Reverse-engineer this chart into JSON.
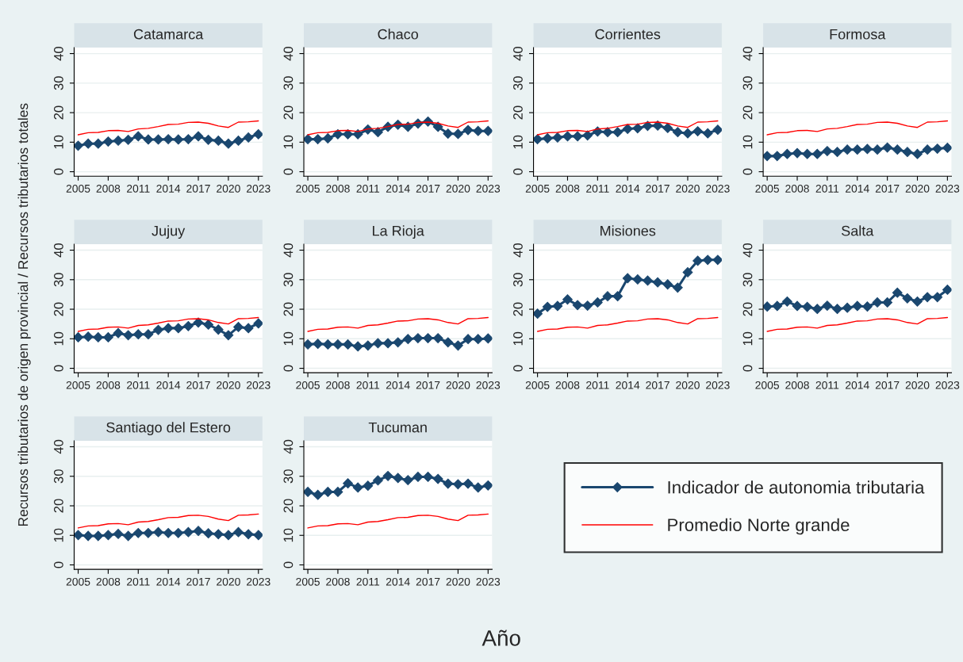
{
  "chart_data": [
    {
      "type": "line",
      "title": "Catamarca",
      "grid": "y",
      "xlim": [
        2004.6,
        2023.4
      ],
      "ylim": [
        -1.5,
        42
      ],
      "xticks": [
        2005,
        2008,
        2011,
        2014,
        2017,
        2020,
        2023
      ],
      "yticks": [
        0,
        10,
        20,
        30,
        40
      ],
      "x": [
        2005,
        2006,
        2007,
        2008,
        2009,
        2010,
        2011,
        2012,
        2013,
        2014,
        2015,
        2016,
        2017,
        2018,
        2019,
        2020,
        2021,
        2022,
        2023
      ],
      "series": [
        {
          "color": "#1a476f",
          "marker": "diamond",
          "values": [
            8.8,
            9.5,
            9.5,
            10.2,
            10.5,
            10.8,
            12.0,
            10.9,
            10.9,
            11.0,
            10.9,
            11.0,
            12.0,
            10.8,
            10.5,
            9.5,
            10.5,
            11.6,
            12.7
          ]
        },
        {
          "color": "#ff0000",
          "marker": "none",
          "values": [
            12.5,
            13.2,
            13.3,
            13.9,
            14.0,
            13.6,
            14.5,
            14.7,
            15.3,
            16.0,
            16.1,
            16.7,
            16.8,
            16.4,
            15.5,
            15.0,
            16.8,
            16.9,
            17.2
          ]
        }
      ]
    },
    {
      "type": "line",
      "title": "Chaco",
      "grid": "y",
      "xlim": [
        2004.6,
        2023.4
      ],
      "ylim": [
        -1.5,
        42
      ],
      "xticks": [
        2005,
        2008,
        2011,
        2014,
        2017,
        2020,
        2023
      ],
      "yticks": [
        0,
        10,
        20,
        30,
        40
      ],
      "x": [
        2005,
        2006,
        2007,
        2008,
        2009,
        2010,
        2011,
        2012,
        2013,
        2014,
        2015,
        2016,
        2017,
        2018,
        2019,
        2020,
        2021,
        2022,
        2023
      ],
      "series": [
        {
          "color": "#1a476f",
          "marker": "diamond",
          "values": [
            11.0,
            11.0,
            11.3,
            12.7,
            12.7,
            12.7,
            14.3,
            13.4,
            15.2,
            15.9,
            15.2,
            16.3,
            17.0,
            15.2,
            12.9,
            12.8,
            14.1,
            13.8,
            13.8
          ]
        },
        {
          "color": "#ff0000",
          "marker": "none",
          "values": [
            12.5,
            13.2,
            13.3,
            13.9,
            14.0,
            13.6,
            14.5,
            14.7,
            15.3,
            16.0,
            16.1,
            16.7,
            16.8,
            16.4,
            15.5,
            15.0,
            16.8,
            16.9,
            17.2
          ]
        }
      ]
    },
    {
      "type": "line",
      "title": "Corrientes",
      "grid": "y",
      "xlim": [
        2004.6,
        2023.4
      ],
      "ylim": [
        -1.5,
        42
      ],
      "xticks": [
        2005,
        2008,
        2011,
        2014,
        2017,
        2020,
        2023
      ],
      "yticks": [
        0,
        10,
        20,
        30,
        40
      ],
      "x": [
        2005,
        2006,
        2007,
        2008,
        2009,
        2010,
        2011,
        2012,
        2013,
        2014,
        2015,
        2016,
        2017,
        2018,
        2019,
        2020,
        2021,
        2022,
        2023
      ],
      "series": [
        {
          "color": "#1a476f",
          "marker": "diamond",
          "values": [
            11.0,
            11.3,
            11.6,
            12.0,
            12.0,
            12.3,
            13.6,
            13.4,
            13.4,
            14.5,
            14.7,
            15.5,
            15.6,
            14.8,
            13.4,
            13.0,
            13.7,
            13.0,
            14.2
          ]
        },
        {
          "color": "#ff0000",
          "marker": "none",
          "values": [
            12.5,
            13.2,
            13.3,
            13.9,
            14.0,
            13.6,
            14.5,
            14.7,
            15.3,
            16.0,
            16.1,
            16.7,
            16.8,
            16.4,
            15.5,
            15.0,
            16.8,
            16.9,
            17.2
          ]
        }
      ]
    },
    {
      "type": "line",
      "title": "Formosa",
      "grid": "y",
      "xlim": [
        2004.6,
        2023.4
      ],
      "ylim": [
        -1.5,
        42
      ],
      "xticks": [
        2005,
        2008,
        2011,
        2014,
        2017,
        2020,
        2023
      ],
      "yticks": [
        0,
        10,
        20,
        30,
        40
      ],
      "x": [
        2005,
        2006,
        2007,
        2008,
        2009,
        2010,
        2011,
        2012,
        2013,
        2014,
        2015,
        2016,
        2017,
        2018,
        2019,
        2020,
        2021,
        2022,
        2023
      ],
      "series": [
        {
          "color": "#1a476f",
          "marker": "diamond",
          "values": [
            5.3,
            5.3,
            6.0,
            6.3,
            6.0,
            6.0,
            7.0,
            6.7,
            7.5,
            7.5,
            7.7,
            7.5,
            8.2,
            7.5,
            6.7,
            6.0,
            7.5,
            7.8,
            8.1
          ]
        },
        {
          "color": "#ff0000",
          "marker": "none",
          "values": [
            12.5,
            13.2,
            13.3,
            13.9,
            14.0,
            13.6,
            14.5,
            14.7,
            15.3,
            16.0,
            16.1,
            16.7,
            16.8,
            16.4,
            15.5,
            15.0,
            16.8,
            16.9,
            17.2
          ]
        }
      ]
    },
    {
      "type": "line",
      "title": "Jujuy",
      "ylabel": "Recursos tributarios de origen provincial / Recursos tributarios totales",
      "grid": "y",
      "xlim": [
        2004.6,
        2023.4
      ],
      "ylim": [
        -1.5,
        42
      ],
      "xticks": [
        2005,
        2008,
        2011,
        2014,
        2017,
        2020,
        2023
      ],
      "yticks": [
        0,
        10,
        20,
        30,
        40
      ],
      "x": [
        2005,
        2006,
        2007,
        2008,
        2009,
        2010,
        2011,
        2012,
        2013,
        2014,
        2015,
        2016,
        2017,
        2018,
        2019,
        2020,
        2021,
        2022,
        2023
      ],
      "series": [
        {
          "color": "#1a476f",
          "marker": "diamond",
          "values": [
            10.5,
            10.7,
            10.5,
            10.5,
            11.9,
            11.2,
            11.5,
            11.5,
            13.0,
            13.6,
            13.6,
            14.3,
            15.5,
            14.8,
            13.1,
            11.2,
            14.0,
            13.6,
            15.2
          ]
        },
        {
          "color": "#ff0000",
          "marker": "none",
          "values": [
            12.5,
            13.2,
            13.3,
            13.9,
            14.0,
            13.6,
            14.5,
            14.7,
            15.3,
            16.0,
            16.1,
            16.7,
            16.8,
            16.4,
            15.5,
            15.0,
            16.8,
            16.9,
            17.2
          ]
        }
      ]
    },
    {
      "type": "line",
      "title": "La Rioja",
      "grid": "y",
      "xlim": [
        2004.6,
        2023.4
      ],
      "ylim": [
        -1.5,
        42
      ],
      "xticks": [
        2005,
        2008,
        2011,
        2014,
        2017,
        2020,
        2023
      ],
      "yticks": [
        0,
        10,
        20,
        30,
        40
      ],
      "x": [
        2005,
        2006,
        2007,
        2008,
        2009,
        2010,
        2011,
        2012,
        2013,
        2014,
        2015,
        2016,
        2017,
        2018,
        2019,
        2020,
        2021,
        2022,
        2023
      ],
      "series": [
        {
          "color": "#1a476f",
          "marker": "diamond",
          "values": [
            8.1,
            8.3,
            8.1,
            8.1,
            8.1,
            7.4,
            7.7,
            8.5,
            8.5,
            8.8,
            9.9,
            10.2,
            10.2,
            10.2,
            8.8,
            7.7,
            9.9,
            9.9,
            10.1
          ]
        },
        {
          "color": "#ff0000",
          "marker": "none",
          "values": [
            12.5,
            13.2,
            13.3,
            13.9,
            14.0,
            13.6,
            14.5,
            14.7,
            15.3,
            16.0,
            16.1,
            16.7,
            16.8,
            16.4,
            15.5,
            15.0,
            16.8,
            16.9,
            17.2
          ]
        }
      ]
    },
    {
      "type": "line",
      "title": "Misiones",
      "grid": "y",
      "xlim": [
        2004.6,
        2023.4
      ],
      "ylim": [
        -1.5,
        42
      ],
      "xticks": [
        2005,
        2008,
        2011,
        2014,
        2017,
        2020,
        2023
      ],
      "yticks": [
        0,
        10,
        20,
        30,
        40
      ],
      "x": [
        2005,
        2006,
        2007,
        2008,
        2009,
        2010,
        2011,
        2012,
        2013,
        2014,
        2015,
        2016,
        2017,
        2018,
        2019,
        2020,
        2021,
        2022,
        2023
      ],
      "series": [
        {
          "color": "#1a476f",
          "marker": "diamond",
          "values": [
            18.5,
            20.8,
            21.1,
            23.3,
            21.4,
            21.2,
            22.3,
            24.4,
            24.4,
            30.5,
            30.1,
            29.7,
            29.1,
            28.4,
            27.3,
            32.5,
            36.4,
            36.7,
            36.7
          ]
        },
        {
          "color": "#ff0000",
          "marker": "none",
          "values": [
            12.5,
            13.2,
            13.3,
            13.9,
            14.0,
            13.6,
            14.5,
            14.7,
            15.3,
            16.0,
            16.1,
            16.7,
            16.8,
            16.4,
            15.5,
            15.0,
            16.8,
            16.9,
            17.2
          ]
        }
      ]
    },
    {
      "type": "line",
      "title": "Salta",
      "grid": "y",
      "xlim": [
        2004.6,
        2023.4
      ],
      "ylim": [
        -1.5,
        42
      ],
      "xticks": [
        2005,
        2008,
        2011,
        2014,
        2017,
        2020,
        2023
      ],
      "yticks": [
        0,
        10,
        20,
        30,
        40
      ],
      "x": [
        2005,
        2006,
        2007,
        2008,
        2009,
        2010,
        2011,
        2012,
        2013,
        2014,
        2015,
        2016,
        2017,
        2018,
        2019,
        2020,
        2021,
        2022,
        2023
      ],
      "series": [
        {
          "color": "#1a476f",
          "marker": "diamond",
          "values": [
            20.9,
            21.1,
            22.6,
            21.1,
            20.8,
            20.1,
            21.2,
            20.1,
            20.5,
            21.1,
            20.9,
            22.3,
            22.3,
            25.6,
            23.7,
            22.6,
            24.1,
            24.1,
            26.6
          ]
        },
        {
          "color": "#ff0000",
          "marker": "none",
          "values": [
            12.5,
            13.2,
            13.3,
            13.9,
            14.0,
            13.6,
            14.5,
            14.7,
            15.3,
            16.0,
            16.1,
            16.7,
            16.8,
            16.4,
            15.5,
            15.0,
            16.8,
            16.9,
            17.2
          ]
        }
      ]
    },
    {
      "type": "line",
      "title": "Santiago del Estero",
      "grid": "y",
      "xlim": [
        2004.6,
        2023.4
      ],
      "ylim": [
        -1.5,
        42
      ],
      "xticks": [
        2005,
        2008,
        2011,
        2014,
        2017,
        2020,
        2023
      ],
      "yticks": [
        0,
        10,
        20,
        30,
        40
      ],
      "x": [
        2005,
        2006,
        2007,
        2008,
        2009,
        2010,
        2011,
        2012,
        2013,
        2014,
        2015,
        2016,
        2017,
        2018,
        2019,
        2020,
        2021,
        2022,
        2023
      ],
      "series": [
        {
          "color": "#1a476f",
          "marker": "diamond",
          "values": [
            10.1,
            9.8,
            9.8,
            10.1,
            10.5,
            9.8,
            10.8,
            10.8,
            11.1,
            10.8,
            10.8,
            11.1,
            11.5,
            10.7,
            10.4,
            10.1,
            11.1,
            10.4,
            10.1
          ]
        },
        {
          "color": "#ff0000",
          "marker": "none",
          "values": [
            12.5,
            13.2,
            13.3,
            13.9,
            14.0,
            13.6,
            14.5,
            14.7,
            15.3,
            16.0,
            16.1,
            16.7,
            16.8,
            16.4,
            15.5,
            15.0,
            16.8,
            16.9,
            17.2
          ]
        }
      ]
    },
    {
      "type": "line",
      "title": "Tucuman",
      "xlabel": "Año",
      "legend": "right",
      "grid": "y",
      "xlim": [
        2004.6,
        2023.4
      ],
      "ylim": [
        -1.5,
        42
      ],
      "xticks": [
        2005,
        2008,
        2011,
        2014,
        2017,
        2020,
        2023
      ],
      "yticks": [
        0,
        10,
        20,
        30,
        40
      ],
      "x": [
        2005,
        2006,
        2007,
        2008,
        2009,
        2010,
        2011,
        2012,
        2013,
        2014,
        2015,
        2016,
        2017,
        2018,
        2019,
        2020,
        2021,
        2022,
        2023
      ],
      "series": [
        {
          "name": "Indicador de autonomia tributaria",
          "color": "#1a476f",
          "marker": "diamond",
          "values": [
            24.7,
            23.7,
            24.7,
            24.7,
            27.6,
            26.2,
            26.8,
            28.6,
            30.1,
            29.4,
            28.7,
            29.8,
            29.8,
            29.1,
            27.5,
            27.3,
            27.5,
            26.2,
            26.9
          ]
        },
        {
          "name": "Promedio Norte grande",
          "color": "#ff0000",
          "marker": "none",
          "values": [
            12.5,
            13.2,
            13.3,
            13.9,
            14.0,
            13.6,
            14.5,
            14.7,
            15.3,
            16.0,
            16.1,
            16.7,
            16.8,
            16.4,
            15.5,
            15.0,
            16.8,
            16.9,
            17.2
          ]
        }
      ]
    }
  ]
}
